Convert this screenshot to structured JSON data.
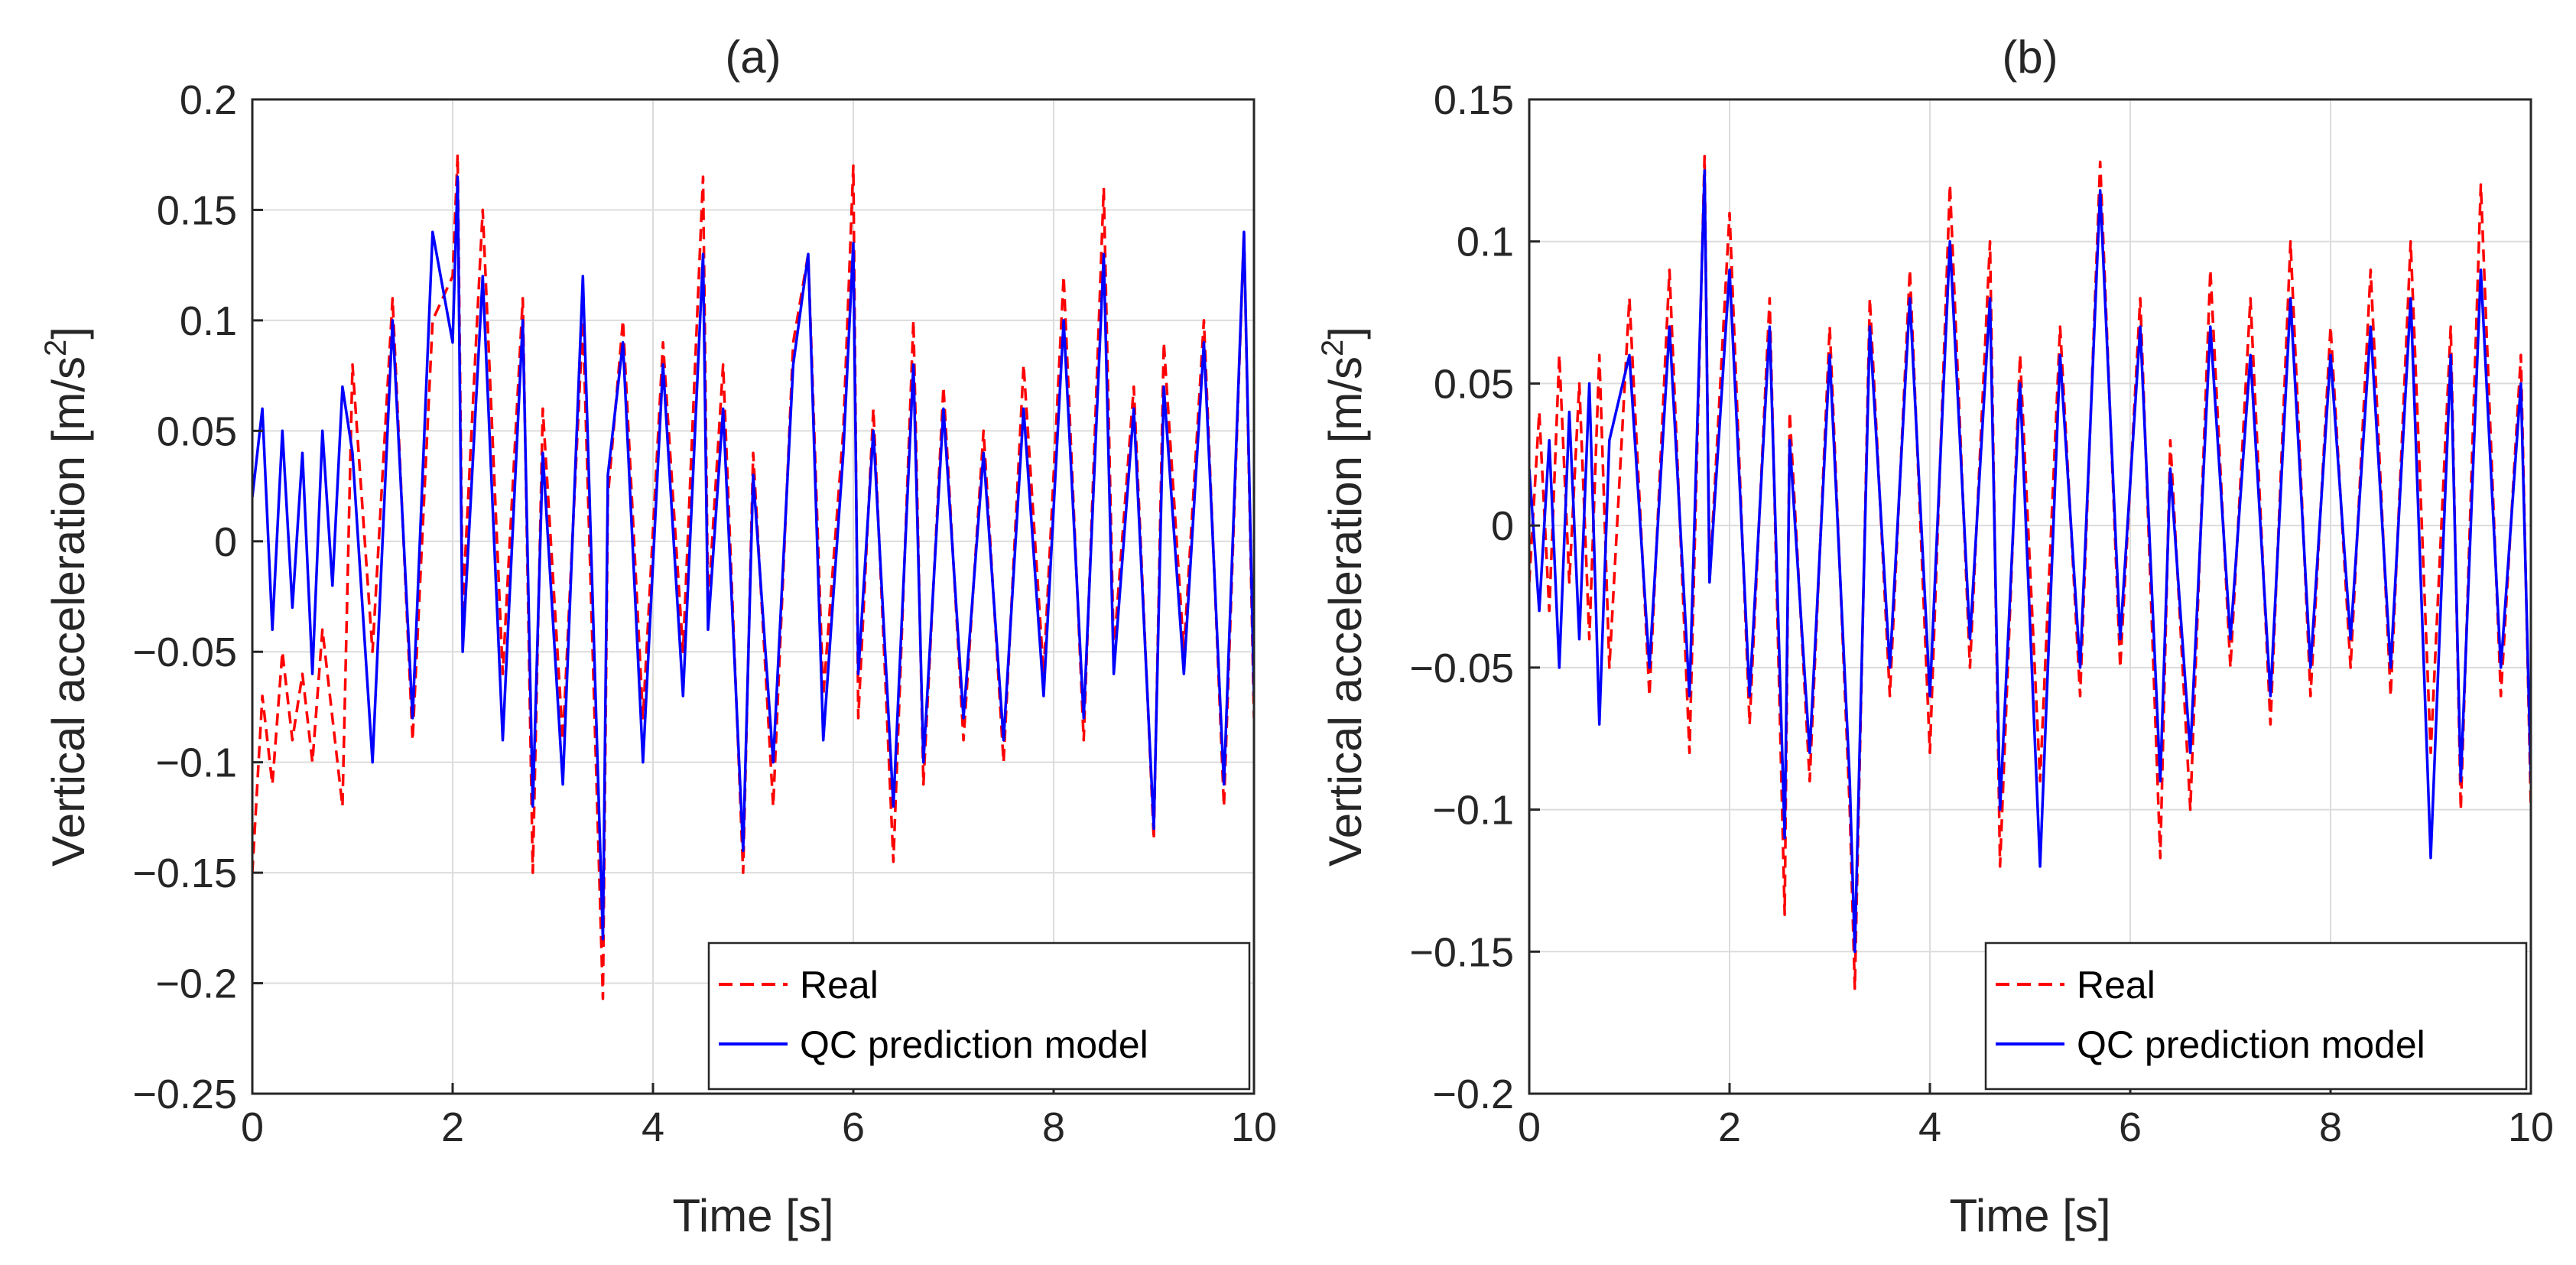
{
  "chart_data": [
    {
      "type": "line",
      "title": "(a)",
      "xlabel": "Time [s]",
      "ylabel": "Vertical acceleration [m/s",
      "ylabel_sup": "2",
      "ylabel_tail": "]",
      "xlim": [
        0,
        10
      ],
      "ylim": [
        -0.25,
        0.2
      ],
      "xticks": [
        0,
        2,
        4,
        6,
        8,
        10
      ],
      "xtick_labels": [
        "0",
        "2",
        "4",
        "6",
        "8",
        "10"
      ],
      "yticks": [
        0.2,
        0.15,
        0.1,
        0.05,
        0,
        -0.05,
        -0.1,
        -0.15,
        -0.2,
        -0.25
      ],
      "ytick_labels": [
        "0.2",
        "0.15",
        "0.1",
        "0.05",
        "0",
        "−0.05",
        "−0.1",
        "−0.15",
        "−0.2",
        "−0.25"
      ],
      "grid": true,
      "legend_position": "bottom-right",
      "series": [
        {
          "name": "Real",
          "color": "#ff0000",
          "style": "dashed",
          "x": [
            0,
            0.1,
            0.2,
            0.3,
            0.4,
            0.5,
            0.6,
            0.7,
            0.8,
            0.9,
            1.0,
            1.2,
            1.4,
            1.6,
            1.8,
            2.0,
            2.05,
            2.1,
            2.3,
            2.5,
            2.7,
            2.8,
            2.9,
            3.1,
            3.3,
            3.5,
            3.55,
            3.7,
            3.9,
            4.1,
            4.3,
            4.5,
            4.55,
            4.7,
            4.9,
            5.0,
            5.2,
            5.4,
            5.55,
            5.7,
            5.9,
            6.0,
            6.05,
            6.2,
            6.4,
            6.6,
            6.7,
            6.9,
            7.1,
            7.3,
            7.5,
            7.7,
            7.9,
            8.1,
            8.3,
            8.5,
            8.6,
            8.8,
            9.0,
            9.1,
            9.3,
            9.5,
            9.7,
            9.9,
            10.0
          ],
          "y": [
            -0.15,
            -0.07,
            -0.11,
            -0.05,
            -0.09,
            -0.06,
            -0.1,
            -0.04,
            -0.08,
            -0.12,
            0.08,
            -0.05,
            0.11,
            -0.09,
            0.1,
            0.12,
            0.175,
            -0.03,
            0.15,
            -0.06,
            0.11,
            -0.15,
            0.06,
            -0.09,
            0.1,
            -0.207,
            0.02,
            0.1,
            -0.08,
            0.09,
            -0.05,
            0.165,
            -0.03,
            0.08,
            -0.15,
            0.04,
            -0.12,
            0.09,
            0.13,
            -0.07,
            0.05,
            0.17,
            -0.08,
            0.06,
            -0.145,
            0.1,
            -0.11,
            0.07,
            -0.09,
            0.05,
            -0.1,
            0.08,
            -0.06,
            0.12,
            -0.09,
            0.16,
            -0.05,
            0.07,
            -0.135,
            0.09,
            -0.05,
            0.1,
            -0.12,
            0.14,
            -0.08
          ]
        },
        {
          "name": "QC prediction model",
          "color": "#0000ff",
          "style": "solid",
          "x": [
            0,
            0.1,
            0.2,
            0.3,
            0.4,
            0.5,
            0.6,
            0.7,
            0.8,
            0.9,
            1.0,
            1.2,
            1.4,
            1.6,
            1.8,
            2.0,
            2.05,
            2.1,
            2.3,
            2.5,
            2.7,
            2.8,
            2.9,
            3.1,
            3.3,
            3.5,
            3.55,
            3.7,
            3.9,
            4.1,
            4.3,
            4.5,
            4.55,
            4.7,
            4.9,
            5.0,
            5.2,
            5.4,
            5.55,
            5.7,
            5.9,
            6.0,
            6.05,
            6.2,
            6.4,
            6.6,
            6.7,
            6.9,
            7.1,
            7.3,
            7.5,
            7.7,
            7.9,
            8.1,
            8.3,
            8.5,
            8.6,
            8.8,
            9.0,
            9.1,
            9.3,
            9.5,
            9.7,
            9.9,
            10.0
          ],
          "y": [
            0.02,
            0.06,
            -0.04,
            0.05,
            -0.03,
            0.04,
            -0.06,
            0.05,
            -0.02,
            0.07,
            0.04,
            -0.1,
            0.1,
            -0.08,
            0.14,
            0.09,
            0.165,
            -0.05,
            0.12,
            -0.09,
            0.1,
            -0.12,
            0.04,
            -0.11,
            0.12,
            -0.18,
            0.03,
            0.09,
            -0.1,
            0.08,
            -0.07,
            0.13,
            -0.04,
            0.06,
            -0.14,
            0.03,
            -0.1,
            0.08,
            0.13,
            -0.09,
            0.04,
            0.135,
            -0.06,
            0.05,
            -0.12,
            0.08,
            -0.1,
            0.06,
            -0.08,
            0.04,
            -0.09,
            0.06,
            -0.07,
            0.1,
            -0.08,
            0.13,
            -0.06,
            0.06,
            -0.13,
            0.07,
            -0.06,
            0.09,
            -0.11,
            0.14,
            -0.07
          ]
        }
      ]
    },
    {
      "type": "line",
      "title": "(b)",
      "xlabel": "Time [s]",
      "ylabel": "Vertical acceleration [m/s",
      "ylabel_sup": "2",
      "ylabel_tail": "]",
      "xlim": [
        0,
        10
      ],
      "ylim": [
        -0.2,
        0.15
      ],
      "xticks": [
        0,
        2,
        4,
        6,
        8,
        10
      ],
      "xtick_labels": [
        "0",
        "2",
        "4",
        "6",
        "8",
        "10"
      ],
      "yticks": [
        0.15,
        0.1,
        0.05,
        0,
        -0.05,
        -0.1,
        -0.15,
        -0.2
      ],
      "ytick_labels": [
        "0.15",
        "0.1",
        "0.05",
        "0",
        "−0.05",
        "−0.1",
        "−0.15",
        "−0.2"
      ],
      "grid": true,
      "legend_position": "bottom-right",
      "series": [
        {
          "name": "Real",
          "color": "#ff0000",
          "style": "dashed",
          "x": [
            0,
            0.1,
            0.2,
            0.3,
            0.4,
            0.5,
            0.6,
            0.7,
            0.8,
            1.0,
            1.2,
            1.4,
            1.6,
            1.75,
            1.8,
            2.0,
            2.2,
            2.4,
            2.55,
            2.6,
            2.8,
            3.0,
            3.2,
            3.25,
            3.4,
            3.6,
            3.8,
            4.0,
            4.2,
            4.4,
            4.6,
            4.7,
            4.9,
            5.1,
            5.3,
            5.5,
            5.7,
            5.9,
            6.1,
            6.3,
            6.4,
            6.6,
            6.8,
            7.0,
            7.2,
            7.4,
            7.6,
            7.8,
            8.0,
            8.2,
            8.4,
            8.6,
            8.8,
            9.0,
            9.2,
            9.3,
            9.5,
            9.7,
            9.9,
            10.0
          ],
          "y": [
            -0.02,
            0.04,
            -0.03,
            0.06,
            -0.02,
            0.05,
            -0.04,
            0.06,
            -0.05,
            0.08,
            -0.06,
            0.09,
            -0.08,
            0.13,
            -0.02,
            0.11,
            -0.07,
            0.08,
            -0.137,
            0.04,
            -0.09,
            0.07,
            -0.1,
            -0.163,
            0.08,
            -0.06,
            0.09,
            -0.08,
            0.12,
            -0.05,
            0.1,
            -0.12,
            0.06,
            -0.09,
            0.07,
            -0.06,
            0.128,
            -0.05,
            0.08,
            -0.117,
            0.03,
            -0.1,
            0.09,
            -0.05,
            0.08,
            -0.07,
            0.1,
            -0.06,
            0.07,
            -0.05,
            0.09,
            -0.06,
            0.1,
            -0.08,
            0.07,
            -0.1,
            0.12,
            -0.06,
            0.06,
            -0.1
          ]
        },
        {
          "name": "QC prediction model",
          "color": "#0000ff",
          "style": "solid",
          "x": [
            0,
            0.1,
            0.2,
            0.3,
            0.4,
            0.5,
            0.6,
            0.7,
            0.8,
            1.0,
            1.2,
            1.4,
            1.6,
            1.75,
            1.8,
            2.0,
            2.2,
            2.4,
            2.55,
            2.6,
            2.8,
            3.0,
            3.2,
            3.25,
            3.4,
            3.6,
            3.8,
            4.0,
            4.2,
            4.4,
            4.6,
            4.7,
            4.9,
            5.1,
            5.3,
            5.5,
            5.7,
            5.9,
            6.1,
            6.3,
            6.4,
            6.6,
            6.8,
            7.0,
            7.2,
            7.4,
            7.6,
            7.8,
            8.0,
            8.2,
            8.4,
            8.6,
            8.8,
            9.0,
            9.2,
            9.3,
            9.5,
            9.7,
            9.9,
            10.0
          ],
          "y": [
            0.02,
            -0.03,
            0.03,
            -0.05,
            0.04,
            -0.04,
            0.05,
            -0.07,
            0.03,
            0.06,
            -0.05,
            0.07,
            -0.06,
            0.125,
            -0.02,
            0.09,
            -0.06,
            0.07,
            -0.11,
            0.03,
            -0.08,
            0.06,
            -0.09,
            -0.15,
            0.07,
            -0.05,
            0.08,
            -0.06,
            0.1,
            -0.04,
            0.08,
            -0.1,
            0.05,
            -0.12,
            0.06,
            -0.05,
            0.118,
            -0.04,
            0.07,
            -0.09,
            0.02,
            -0.08,
            0.07,
            -0.04,
            0.06,
            -0.06,
            0.08,
            -0.05,
            0.06,
            -0.04,
            0.07,
            -0.05,
            0.08,
            -0.117,
            0.06,
            -0.09,
            0.09,
            -0.05,
            0.05,
            -0.09
          ]
        }
      ]
    }
  ]
}
